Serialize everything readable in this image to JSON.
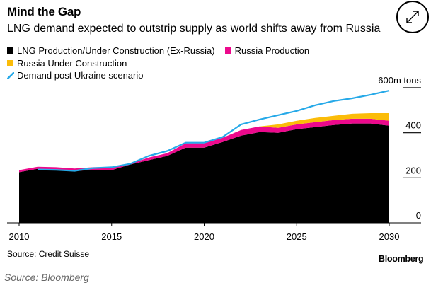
{
  "header": {
    "title": "Mind the Gap",
    "subtitle": "LNG demand expected to outstrip supply as world shifts away from Russia"
  },
  "controls": {
    "expand_icon": "expand-arrows-icon"
  },
  "legend": [
    {
      "label": "LNG Production/Under Construction (Ex-Russia)",
      "color": "#000000",
      "kind": "square"
    },
    {
      "label": "Russia Production",
      "color": "#ec098c",
      "kind": "square"
    },
    {
      "label": "Russia Under Construction",
      "color": "#fbbc09",
      "kind": "square"
    },
    {
      "label": "Demand post Ukraine scenario",
      "color": "#26a9e8",
      "kind": "line"
    }
  ],
  "footer": {
    "source": "Source: Credit Suisse",
    "brand": "Bloomberg",
    "caption": "Source: Bloomberg"
  },
  "chart_data": {
    "type": "area",
    "title": "Mind the Gap",
    "subtitle": "LNG demand expected to outstrip supply as world shifts away from Russia",
    "xlabel": "",
    "ylabel": "m tons",
    "x": [
      2010,
      2011,
      2012,
      2013,
      2014,
      2015,
      2016,
      2017,
      2018,
      2019,
      2020,
      2021,
      2022,
      2023,
      2024,
      2025,
      2026,
      2027,
      2028,
      2029,
      2030
    ],
    "xlim": [
      2010,
      2030
    ],
    "ylim": [
      0,
      600
    ],
    "x_ticks": [
      2010,
      2015,
      2020,
      2025,
      2030
    ],
    "y_ticks": [
      0,
      200,
      400,
      600
    ],
    "y_tick_labels": [
      "0",
      "200",
      "400",
      "600m tons"
    ],
    "stacked": true,
    "series": [
      {
        "name": "LNG Production/Under Construction (Ex-Russia)",
        "color": "#000000",
        "kind": "area",
        "values": [
          225,
          240,
          237,
          231,
          234,
          234,
          259,
          278,
          297,
          334,
          334,
          359,
          387,
          403,
          400,
          416,
          425,
          434,
          441,
          441,
          431
        ]
      },
      {
        "name": "Russia Production",
        "color": "#ec098c",
        "kind": "area",
        "values": [
          9,
          9,
          10,
          10,
          13,
          13,
          3,
          12,
          12,
          19,
          19,
          19,
          25,
          25,
          22,
          21,
          22,
          22,
          21,
          21,
          22
        ]
      },
      {
        "name": "Russia Under Construction",
        "color": "#fbbc09",
        "kind": "area",
        "values": [
          0,
          0,
          0,
          0,
          0,
          0,
          0,
          0,
          0,
          0,
          0,
          0,
          0,
          0,
          15,
          16,
          19,
          19,
          22,
          25,
          34
        ]
      },
      {
        "name": "Demand post Ukraine scenario",
        "color": "#26a9e8",
        "kind": "line",
        "values": [
          null,
          237,
          235,
          231,
          243,
          247,
          262,
          297,
          319,
          356,
          356,
          381,
          437,
          459,
          478,
          497,
          522,
          541,
          553,
          569,
          587
        ]
      }
    ],
    "grid": false,
    "legend_position": "top-left",
    "y_axis_side": "right"
  }
}
